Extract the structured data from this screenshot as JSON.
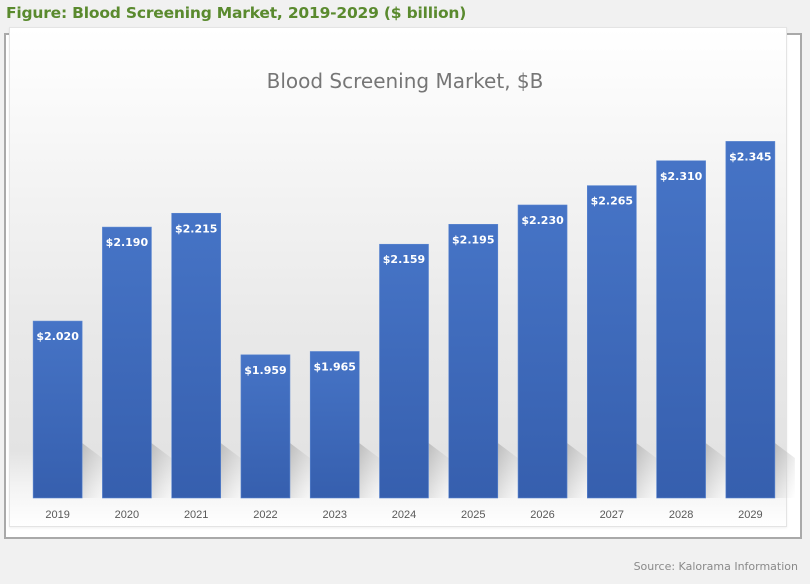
{
  "figure_title": "Figure: Blood Screening Market, 2019-2029 ($ billion)",
  "source": "Source: Kalorama Information",
  "colors": {
    "title_green": "#5a8a2e",
    "bar_blue": "#4472c4",
    "bar_blue_dark": "#3a62b0",
    "label_white": "#ffffff",
    "axis_text": "#595959",
    "chart_title": "#767676"
  },
  "chart_data": {
    "type": "bar",
    "title": "Blood Screening Market, $B",
    "xlabel": "",
    "ylabel": "",
    "categories": [
      "2019",
      "2020",
      "2021",
      "2022",
      "2023",
      "2024",
      "2025",
      "2026",
      "2027",
      "2028",
      "2029"
    ],
    "values": [
      2.02,
      2.19,
      2.215,
      1.959,
      1.965,
      2.159,
      2.195,
      2.23,
      2.265,
      2.31,
      2.345
    ],
    "data_labels": [
      "$2.020",
      "$2.190",
      "$2.215",
      "$1.959",
      "$1.965",
      "$2.159",
      "$2.195",
      "$2.230",
      "$2.265",
      "$2.310",
      "$2.345"
    ],
    "units": "$ billion",
    "ylim": [
      1.7,
      2.4
    ],
    "y_axis_visible": false,
    "grid": false,
    "legend": "none"
  }
}
